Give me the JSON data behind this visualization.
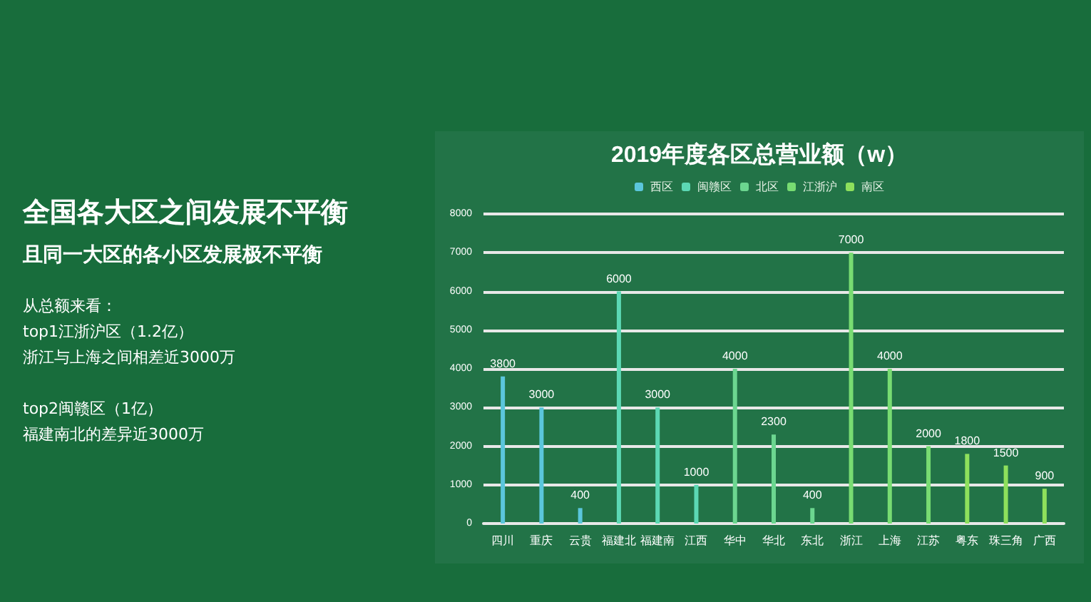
{
  "chart_data": {
    "type": "bar",
    "title": "2019年度各区总营业额（w）",
    "categories": [
      "四川",
      "重庆",
      "云贵",
      "福建北",
      "福建南",
      "江西",
      "华中",
      "华北",
      "东北",
      "浙江",
      "上海",
      "江苏",
      "粤东",
      "珠三角",
      "广西"
    ],
    "series": [
      {
        "name": "西区",
        "color": "#5bc6dc",
        "values": [
          3800,
          3000,
          400,
          null,
          null,
          null,
          null,
          null,
          null,
          null,
          null,
          null,
          null,
          null,
          null
        ]
      },
      {
        "name": "闽赣区",
        "color": "#5cd8b4",
        "values": [
          null,
          null,
          null,
          6000,
          3000,
          1000,
          null,
          null,
          null,
          null,
          null,
          null,
          null,
          null,
          null
        ]
      },
      {
        "name": "北区",
        "color": "#6cd690",
        "values": [
          null,
          null,
          null,
          null,
          null,
          null,
          4000,
          2300,
          400,
          null,
          null,
          null,
          null,
          null,
          null
        ]
      },
      {
        "name": "江浙沪",
        "color": "#78dc72",
        "values": [
          null,
          null,
          null,
          null,
          null,
          null,
          null,
          null,
          null,
          7000,
          4000,
          2000,
          null,
          null,
          null
        ]
      },
      {
        "name": "南区",
        "color": "#8ee05c",
        "values": [
          null,
          null,
          null,
          null,
          null,
          null,
          null,
          null,
          null,
          null,
          null,
          null,
          1800,
          1500,
          900
        ]
      }
    ],
    "ylim": [
      0,
      8000
    ],
    "yticks": [
      0,
      1000,
      2000,
      3000,
      4000,
      5000,
      6000,
      7000,
      8000
    ],
    "grid": "y",
    "legend": "top",
    "data_labels": true,
    "annotations": [
      "全国各大区之间发展不平衡",
      "且同一大区的各小区发展极不平衡",
      "从总额来看：",
      "top1江浙沪区（1.2亿）",
      "浙江与上海之间相差近3000万",
      "top2闽赣区（1亿）",
      "福建南北的差异近3000万"
    ]
  }
}
